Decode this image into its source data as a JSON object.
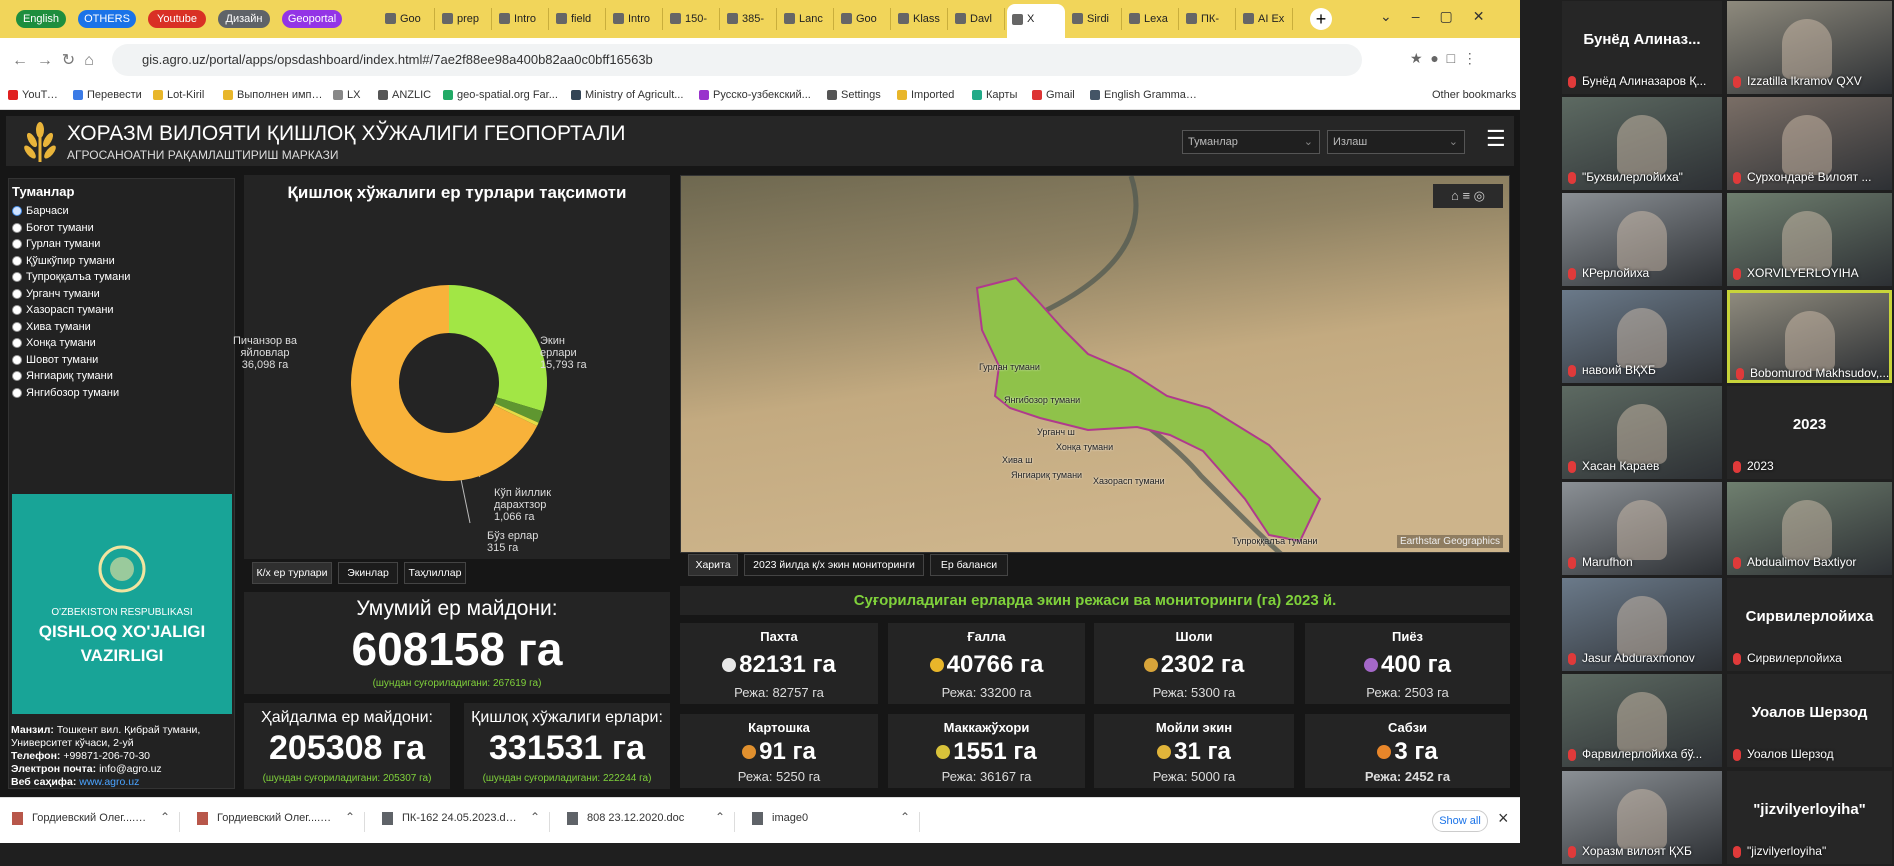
{
  "browser": {
    "tab_groups": [
      "English",
      "OTHERS",
      "Youtube",
      "Дизайн",
      "Geoportal"
    ],
    "tabs": [
      "Goo",
      "prep",
      "Intro",
      "field",
      "Intro",
      "150-",
      "385-",
      "Lanc",
      "Goo",
      "Klass",
      "Davl",
      "X",
      "Sirdi",
      "Lexa",
      "ПК-",
      "AI Ex"
    ],
    "url": "gis.agro.uz/portal/apps/opsdashboard/index.html#/7ae2f88ee98a400b82aa0c0bff16563b",
    "bookmarks": [
      "YouTube",
      "Перевести",
      "Lot-Kiril",
      "Выполнен импорт",
      "LX",
      "ANZLIC",
      "geo-spatial.org Far...",
      "Ministry of Agricult...",
      "Русско-узбекский...",
      "Settings",
      "Imported",
      "Карты",
      "Gmail",
      "English Grammar L..."
    ],
    "other_bookmarks": "Other bookmarks"
  },
  "header": {
    "title": "ХОРАЗМ ВИЛОЯТИ ҚИШЛОҚ ХЎЖАЛИГИ ГЕОПОРТАЛИ",
    "subtitle": "АГРОСАНОАТНИ РАҚАМЛАШТИРИШ МАРКАЗИ",
    "dropdowns": [
      "Туманлар",
      "Излаш"
    ]
  },
  "sidebar": {
    "heading": "Туманлар",
    "options": [
      "Барчаси",
      "Боғот тумани",
      "Гурлан тумани",
      "Қўшкўпир тумани",
      "Тупроққалъа тумани",
      "Урганч тумани",
      "Хазорасп тумани",
      "Хива тумани",
      "Хонқа тумани",
      "Шовот тумани",
      "Янгиариқ тумани",
      "Янгибозор тумани"
    ],
    "logo": [
      "O'ZBEKISTON RESPUBLIKASI",
      "QISHLOQ XO'JALIGI",
      "VAZIRLIGI"
    ],
    "contact": [
      {
        "label": "Манзил:",
        "value": "Тошкент вил. Қибрай тумани, Университет кўчаси, 2-уй"
      },
      {
        "label": "Телефон:",
        "value": "+99871-206-70-30"
      },
      {
        "label": "Электрон почта:",
        "value": "info@agro.uz"
      },
      {
        "label": "Веб саҳифа:",
        "value": "www.agro.uz"
      }
    ]
  },
  "chart_data": {
    "type": "donut",
    "title": "Қишлоқ хўжалиги ер турлари тақсимоти",
    "categories": [
      "Экин ерлари",
      "Кўп йиллик дарахтзор",
      "Бўз ерлар",
      "Пичанзор ва яйловлар"
    ],
    "values": [
      15793,
      1066,
      315,
      36098
    ],
    "value_labels": [
      "15,793 га",
      "1,066 га",
      "315 га",
      "36,098 га"
    ],
    "colors": [
      "#a2e645",
      "#5f9630",
      "#e3dc45",
      "#f8b23a"
    ]
  },
  "chart_tabs": [
    "К/х ер турлари",
    "Экинлар",
    "Таҳлиллар"
  ],
  "map": {
    "labels": [
      "Гурлан тумани",
      "Янгибозор тумани",
      "Урганч ш",
      "Хонқа тумани",
      "Хива ш",
      "Янгиариқ тумани",
      "Хазорасп тумани",
      "Тупроққалъа тумани"
    ],
    "attribution": "Earthstar Geographics",
    "tabs": [
      "Харита",
      "2023 йилда қ/х экин мониторинги",
      "Ер баланси"
    ]
  },
  "totals": {
    "main": {
      "label": "Умумий ер майдони:",
      "value": "608158 га",
      "note": "(шундан суғориладигани: 267619 га)"
    },
    "sub": [
      {
        "label": "Ҳайдалма ер майдони:",
        "value": "205308 га",
        "note": "(шундан суғориладигани: 205307 га)"
      },
      {
        "label": "Қишлоқ хўжалиги ерлари:",
        "value": "331531 га",
        "note": "(шундан суғориладигани: 222244 га)"
      }
    ]
  },
  "crops": {
    "title": "Суғориладиган ерларда экин режаси ва мониторинги (га) 2023 й.",
    "items": [
      {
        "name": "Пахта",
        "value": "82131 га",
        "plan": "Режа: 82757 га"
      },
      {
        "name": "Ғалла",
        "value": "40766 га",
        "plan": "Режа: 33200 га"
      },
      {
        "name": "Шоли",
        "value": "2302 га",
        "plan": "Режа: 5300 га"
      },
      {
        "name": "Пиёз",
        "value": "400 га",
        "plan": "Режа: 2503 га"
      },
      {
        "name": "Картошка",
        "value": "91 га",
        "plan": "Режа: 5250 га"
      },
      {
        "name": "Маккажўхори",
        "value": "1551 га",
        "plan": "Режа: 36167 га"
      },
      {
        "name": "Мойли экин",
        "value": "31 га",
        "plan": "Режа: 5000 га"
      },
      {
        "name": "Сабзи",
        "value": "3 га",
        "plan": "Режа: 2452 га"
      }
    ]
  },
  "downloads": {
    "files": [
      "Гордиевский Олег....zip",
      "Гордиевский Олег....zip",
      "ПК-162 24.05.2023.doc",
      "808 23.12.2020.doc",
      "image0"
    ],
    "show_all": "Show all"
  },
  "participants": [
    {
      "name": "Бунёд Алиназаров Қ...",
      "avatar": "Бунёд Алиназ..."
    },
    {
      "name": "Izzatilla Ikramov QXV"
    },
    {
      "name": "\"Бухвилерлойиха\""
    },
    {
      "name": "Сурхондарё Вилоят ..."
    },
    {
      "name": "КРерлойиха"
    },
    {
      "name": "XORVILYERLOYIHA"
    },
    {
      "name": "навоий ВҚХБ"
    },
    {
      "name": "Bobomurod Makhsudov,..."
    },
    {
      "name": "Хасан Караев"
    },
    {
      "name": "2023",
      "avatar": "2023"
    },
    {
      "name": "Marufhon"
    },
    {
      "name": "Abdualimov Baxtiyor"
    },
    {
      "name": "Jasur Abduraxmonov"
    },
    {
      "name": "Сирвилерлойиха",
      "avatar": "Сирвилерлойиха"
    },
    {
      "name": "Фарвилерлойиха бў..."
    },
    {
      "name": "Уоалов Шерзод",
      "avatar": "Уоалов Шерзод"
    },
    {
      "name": "Хоразм вилоят ҚХБ"
    },
    {
      "name": "\"jizvilyerloyiha\"",
      "avatar": "\"jizvilyerloyiha\""
    }
  ]
}
